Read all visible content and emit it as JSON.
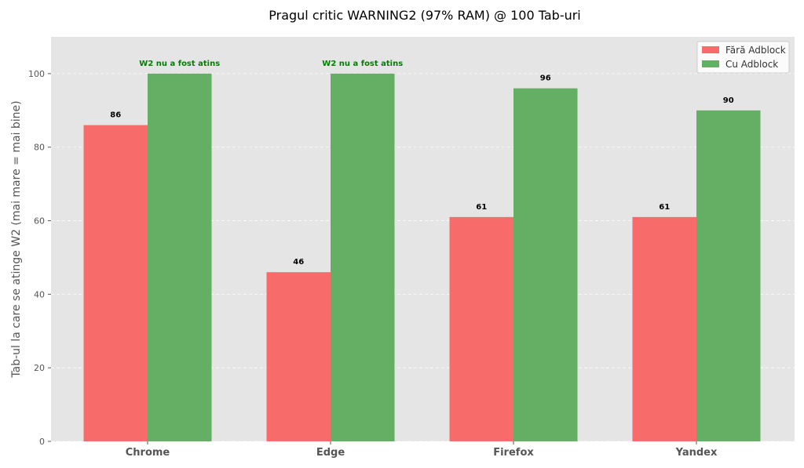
{
  "chart_data": {
    "type": "bar",
    "title": "Pragul critic WARNING2 (97% RAM) @ 100 Tab-uri",
    "xlabel": "",
    "ylabel": "Tab-ul la care se atinge W2 (mai mare = mai bine)",
    "categories": [
      "Chrome",
      "Edge",
      "Firefox",
      "Yandex"
    ],
    "series": [
      {
        "name": "Fără Adblock",
        "values": [
          86,
          46,
          61,
          61
        ],
        "color": "#f86b6b"
      },
      {
        "name": "Cu Adblock",
        "values": [
          100,
          100,
          96,
          90
        ],
        "color": "#64af64"
      }
    ],
    "value_labels": [
      [
        "86",
        "46",
        "61",
        "61"
      ],
      [
        "W2 nu a fost atins",
        "W2 nu a fost atins",
        "96",
        "90"
      ]
    ],
    "ylim": [
      0,
      110
    ],
    "yticks": [
      0,
      20,
      40,
      60,
      80,
      100
    ],
    "grid": true,
    "legend_position": "top-right",
    "colors": {
      "plot_background": "#e5e5e5",
      "grid": "#ffffff",
      "value_label": "#000000",
      "note_label": "#008000"
    }
  }
}
